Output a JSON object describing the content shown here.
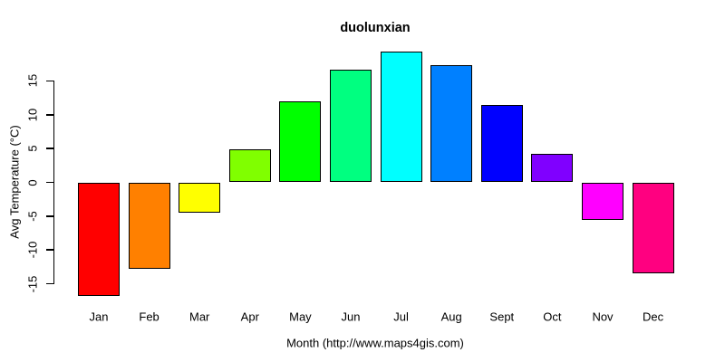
{
  "chart_data": {
    "type": "bar",
    "title": "duolunxian",
    "xlabel": "Month (http://www.maps4gis.com)",
    "ylabel": "Avg Temperature (°C)",
    "categories": [
      "Jan",
      "Feb",
      "Mar",
      "Apr",
      "May",
      "Jun",
      "Jul",
      "Aug",
      "Sept",
      "Oct",
      "Nov",
      "Dec"
    ],
    "values": [
      -16.8,
      -12.8,
      -4.5,
      4.9,
      12.0,
      16.6,
      19.3,
      17.4,
      11.4,
      4.2,
      -5.6,
      -13.5
    ],
    "bar_colors": [
      "#FF0000",
      "#FF8000",
      "#FFFF00",
      "#80FF00",
      "#00FF00",
      "#00FF80",
      "#00FFFF",
      "#0080FF",
      "#0000FF",
      "#8000FF",
      "#FF00FF",
      "#FF0080"
    ],
    "bar_border_color": "#000000",
    "yticks": [
      -15,
      -10,
      -5,
      0,
      5,
      10,
      15
    ],
    "ylim": [
      -17.5,
      20
    ],
    "grid": false,
    "legend": "none",
    "background": "#ffffff",
    "text_color": "#000000"
  }
}
